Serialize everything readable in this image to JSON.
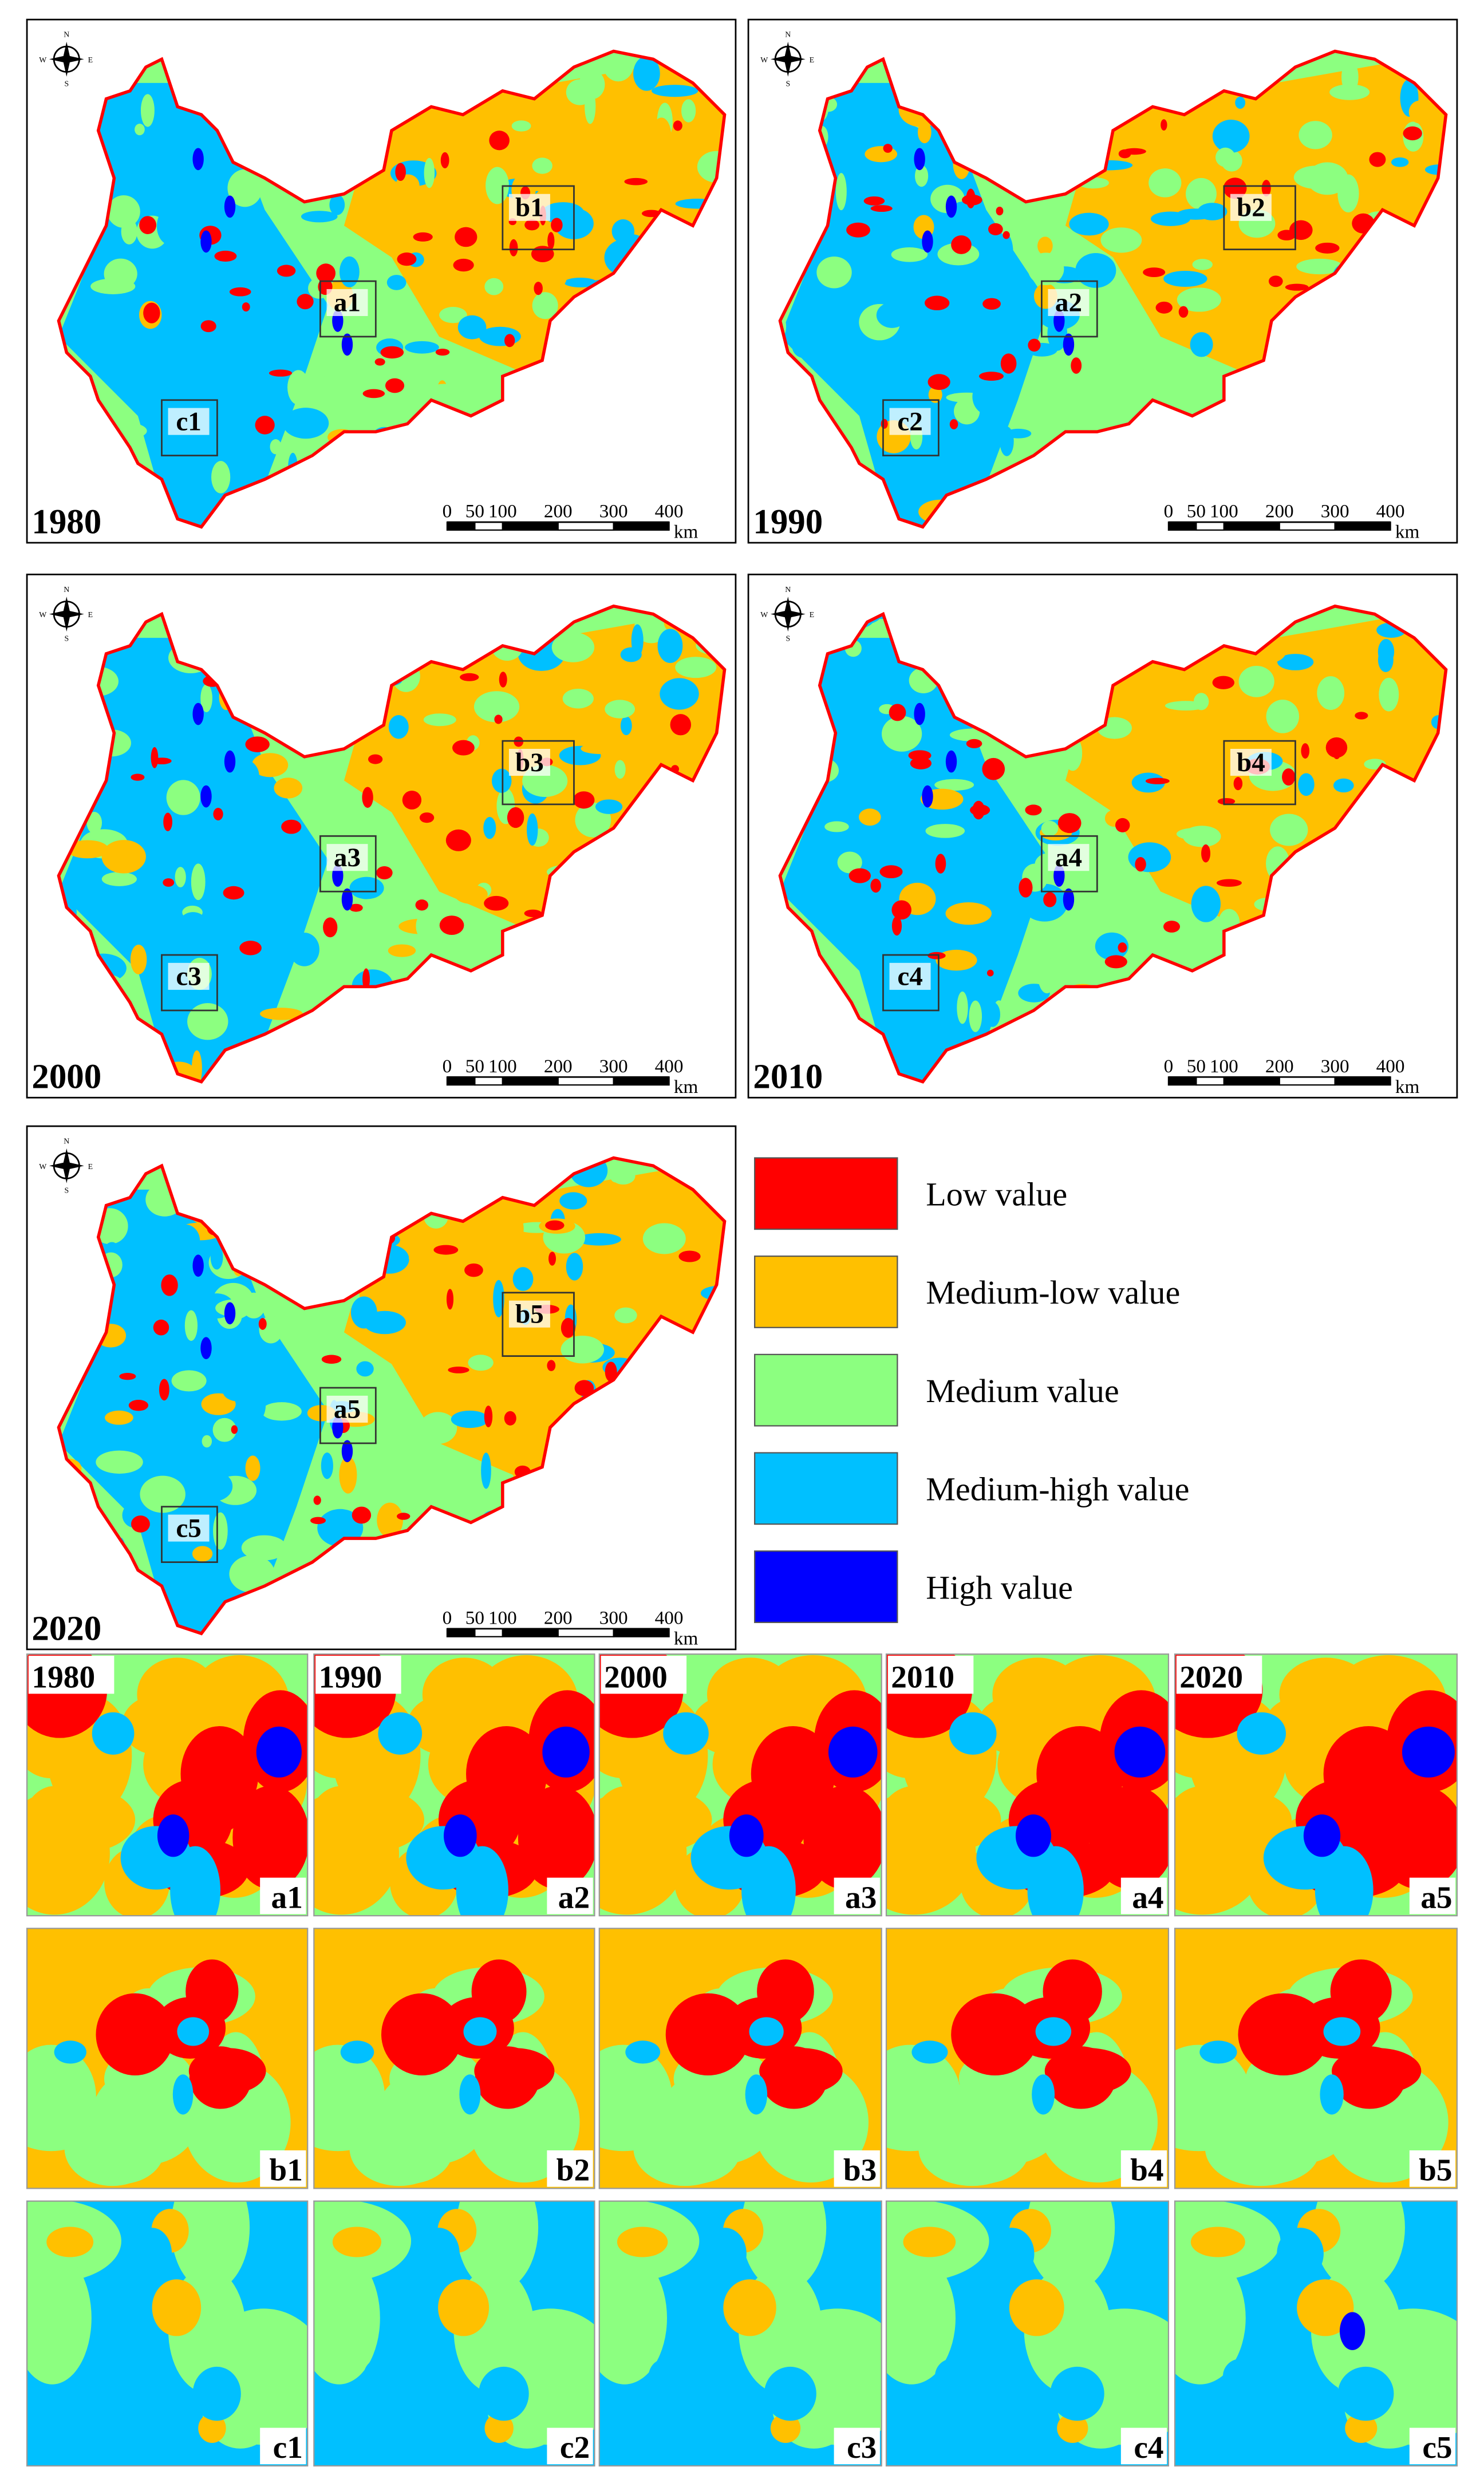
{
  "maps": [
    {
      "year": "1980",
      "regions": [
        "a1",
        "b1",
        "c1"
      ]
    },
    {
      "year": "1990",
      "regions": [
        "a2",
        "b2",
        "c2"
      ]
    },
    {
      "year": "2000",
      "regions": [
        "a3",
        "b3",
        "c3"
      ]
    },
    {
      "year": "2010",
      "regions": [
        "a4",
        "b4",
        "c4"
      ]
    },
    {
      "year": "2020",
      "regions": [
        "a5",
        "b5",
        "c5"
      ]
    }
  ],
  "compass": {
    "n": "N",
    "s": "S",
    "w": "W",
    "e": "E"
  },
  "scale_bar": {
    "ticks": [
      0,
      50,
      100,
      200,
      300,
      400
    ],
    "unit": "km"
  },
  "legend": [
    {
      "label": "Low value",
      "color": "#ff0000"
    },
    {
      "label": "Medium-low value",
      "color": "#ffc000"
    },
    {
      "label": "Medium value",
      "color": "#8cff80"
    },
    {
      "label": "Medium-high value",
      "color": "#00c0ff"
    },
    {
      "label": "High value",
      "color": "#0000ff"
    }
  ],
  "zoom_panels": {
    "years": [
      "1980",
      "1990",
      "2000",
      "2010",
      "2020"
    ],
    "rows": [
      [
        "a1",
        "a2",
        "a3",
        "a4",
        "a5"
      ],
      [
        "b1",
        "b2",
        "b3",
        "b4",
        "b5"
      ],
      [
        "c1",
        "c2",
        "c3",
        "c4",
        "c5"
      ]
    ]
  }
}
